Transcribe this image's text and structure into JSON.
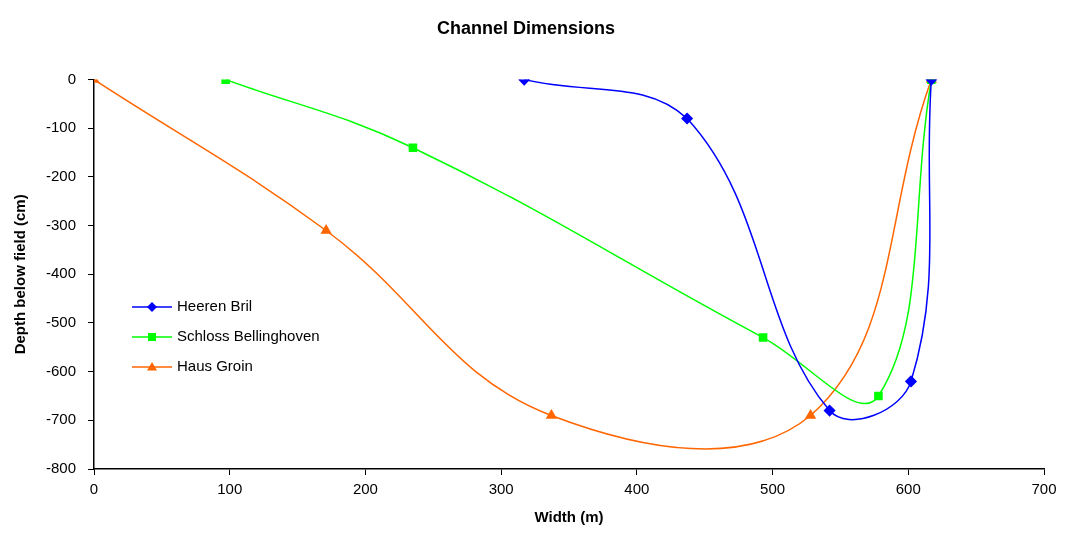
{
  "chart_data": {
    "type": "line",
    "title": "Channel Dimensions",
    "xlabel": "Width (m)",
    "ylabel": "Depth below field (cm)",
    "xlim": [
      0,
      700
    ],
    "xticks": [
      0,
      100,
      200,
      300,
      400,
      500,
      600,
      700
    ],
    "ylim": [
      -800,
      0
    ],
    "yticks": [
      0,
      -100,
      -200,
      -300,
      -400,
      -500,
      -600,
      -700,
      -800
    ],
    "grid": false,
    "legend": "bottom left",
    "series": [
      {
        "name": "Heeren Bril",
        "color": "#0000ff",
        "marker": "diamond",
        "x": [
          317,
          437,
          542,
          602,
          617
        ],
        "values": [
          0,
          -80,
          -680,
          -620,
          0
        ]
      },
      {
        "name": "Schloss Bellinghoven",
        "color": "#00ff00",
        "marker": "square",
        "x": [
          97,
          235,
          493,
          578,
          617
        ],
        "values": [
          0,
          -140,
          -530,
          -650,
          0
        ]
      },
      {
        "name": "Haus Groin",
        "color": "#ff6600",
        "marker": "triangle",
        "x": [
          0,
          171,
          337,
          528,
          617
        ],
        "values": [
          0,
          -310,
          -690,
          -690,
          0
        ]
      }
    ]
  }
}
